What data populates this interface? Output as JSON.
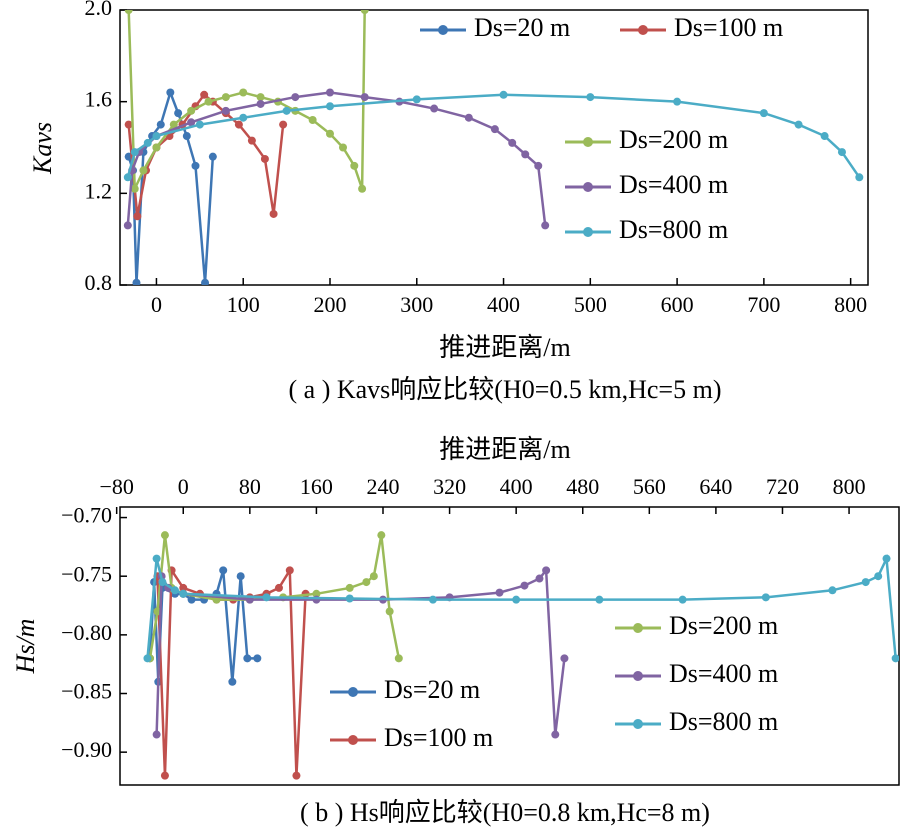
{
  "chart_data": [
    {
      "type": "line",
      "caption": "( a ) Kavs响应比较(H0=0.5 km,Hc=5 m)",
      "xlabel": "推进距离/m",
      "ylabel": "Kavs",
      "xlim": [
        -42,
        820
      ],
      "ylim": [
        0.8,
        2.0
      ],
      "xticks": [
        0,
        100,
        200,
        300,
        400,
        500,
        600,
        700,
        800
      ],
      "yticks": [
        0.8,
        1.2,
        1.6,
        {
          "value": 2,
          "label": "2.0"
        }
      ],
      "series": [
        {
          "name": "Ds=20 m",
          "color": "#3e76b4",
          "x": [
            -32,
            -27,
            -23,
            -15,
            -5,
            5,
            16,
            25,
            35,
            45,
            56,
            65
          ],
          "values": [
            1.36,
            1.3,
            0.81,
            1.38,
            1.45,
            1.5,
            1.64,
            1.55,
            1.45,
            1.32,
            0.81,
            1.36
          ]
        },
        {
          "name": "Ds=100 m",
          "color": "#c0504d",
          "x": [
            -32,
            -22,
            -12,
            0,
            15,
            30,
            45,
            55,
            65,
            80,
            95,
            110,
            125,
            135,
            146
          ],
          "values": [
            1.5,
            1.1,
            1.3,
            1.4,
            1.45,
            1.5,
            1.58,
            1.63,
            1.6,
            1.55,
            1.5,
            1.43,
            1.35,
            1.11,
            1.5
          ]
        },
        {
          "name": "Ds=200 m",
          "color": "#9bbb59",
          "x": [
            -32,
            -25,
            -15,
            0,
            20,
            40,
            60,
            80,
            100,
            120,
            140,
            160,
            180,
            200,
            215,
            228,
            237,
            240
          ],
          "values": [
            2.0,
            1.22,
            1.3,
            1.4,
            1.5,
            1.56,
            1.6,
            1.62,
            1.64,
            1.62,
            1.6,
            1.56,
            1.52,
            1.46,
            1.4,
            1.32,
            1.22,
            2.0
          ]
        },
        {
          "name": "Ds=400 m",
          "color": "#8064a2",
          "x": [
            -33,
            -28,
            -20,
            0,
            40,
            80,
            120,
            160,
            200,
            240,
            280,
            320,
            360,
            390,
            410,
            425,
            440,
            448
          ],
          "values": [
            1.06,
            1.3,
            1.38,
            1.45,
            1.51,
            1.56,
            1.59,
            1.62,
            1.64,
            1.62,
            1.6,
            1.57,
            1.53,
            1.48,
            1.42,
            1.37,
            1.32,
            1.06
          ]
        },
        {
          "name": "Ds=800 m",
          "color": "#4bacc6",
          "x": [
            -33,
            -25,
            -10,
            0,
            50,
            100,
            150,
            200,
            300,
            400,
            500,
            600,
            700,
            740,
            770,
            790,
            810
          ],
          "values": [
            1.27,
            1.38,
            1.42,
            1.45,
            1.5,
            1.53,
            1.56,
            1.58,
            1.61,
            1.63,
            1.62,
            1.6,
            1.55,
            1.5,
            1.45,
            1.38,
            1.27
          ]
        }
      ]
    },
    {
      "type": "line",
      "caption": "( b ) Hs响应比较(H0=0.8 km,Hc=8 m)",
      "xlabel": "推进距离/m",
      "ylabel": "Hs/m",
      "xlim": [
        -76,
        860
      ],
      "ylim": [
        -0.928,
        -0.691
      ],
      "xticks": [
        {
          "value": -80,
          "label": "−80"
        },
        0,
        80,
        160,
        240,
        320,
        400,
        480,
        560,
        640,
        720,
        800
      ],
      "yticks": [
        {
          "value": -0.7,
          "label": "−0.70"
        },
        {
          "value": -0.75,
          "label": "−0.75"
        },
        {
          "value": -0.8,
          "label": "−0.80"
        },
        {
          "value": -0.85,
          "label": "−0.85"
        },
        {
          "value": -0.9,
          "label": "−0.90"
        }
      ],
      "series": [
        {
          "name": "Ds=20 m",
          "color": "#3e76b4",
          "x": [
            -40,
            -35,
            -30,
            -25,
            -10,
            0,
            10,
            25,
            40,
            48,
            59,
            69,
            77,
            89
          ],
          "values": [
            -0.82,
            -0.755,
            -0.84,
            -0.76,
            -0.765,
            -0.765,
            -0.77,
            -0.77,
            -0.765,
            -0.745,
            -0.84,
            -0.75,
            -0.82,
            -0.82
          ]
        },
        {
          "name": "Ds=100 m",
          "color": "#c0504d",
          "x": [
            -31,
            -22,
            -14,
            0,
            20,
            40,
            60,
            80,
            100,
            115,
            128,
            136,
            147
          ],
          "values": [
            -0.75,
            -0.92,
            -0.745,
            -0.76,
            -0.765,
            -0.77,
            -0.77,
            -0.768,
            -0.765,
            -0.76,
            -0.745,
            -0.92,
            -0.765
          ]
        },
        {
          "name": "Ds=200 m",
          "color": "#9bbb59",
          "x": [
            -40,
            -31,
            -22,
            -14,
            0,
            40,
            80,
            120,
            160,
            200,
            220,
            229,
            238,
            248,
            259
          ],
          "values": [
            -0.82,
            -0.78,
            -0.715,
            -0.76,
            -0.765,
            -0.77,
            -0.77,
            -0.768,
            -0.765,
            -0.76,
            -0.755,
            -0.75,
            -0.715,
            -0.78,
            -0.82
          ]
        },
        {
          "name": "Ds=400 m",
          "color": "#8064a2",
          "x": [
            -32,
            -26,
            -18,
            0,
            80,
            160,
            240,
            320,
            380,
            410,
            428,
            436,
            447,
            458
          ],
          "values": [
            -0.885,
            -0.75,
            -0.76,
            -0.765,
            -0.77,
            -0.77,
            -0.77,
            -0.768,
            -0.764,
            -0.758,
            -0.752,
            -0.745,
            -0.885,
            -0.82
          ]
        },
        {
          "name": "Ds=800 m",
          "color": "#4bacc6",
          "x": [
            -43,
            -32,
            -25,
            -10,
            0,
            100,
            200,
            300,
            400,
            500,
            600,
            700,
            780,
            820,
            835,
            845,
            856
          ],
          "values": [
            -0.82,
            -0.735,
            -0.755,
            -0.762,
            -0.765,
            -0.768,
            -0.769,
            -0.77,
            -0.77,
            -0.77,
            -0.77,
            -0.768,
            -0.762,
            -0.755,
            -0.75,
            -0.735,
            -0.82
          ]
        }
      ]
    }
  ]
}
